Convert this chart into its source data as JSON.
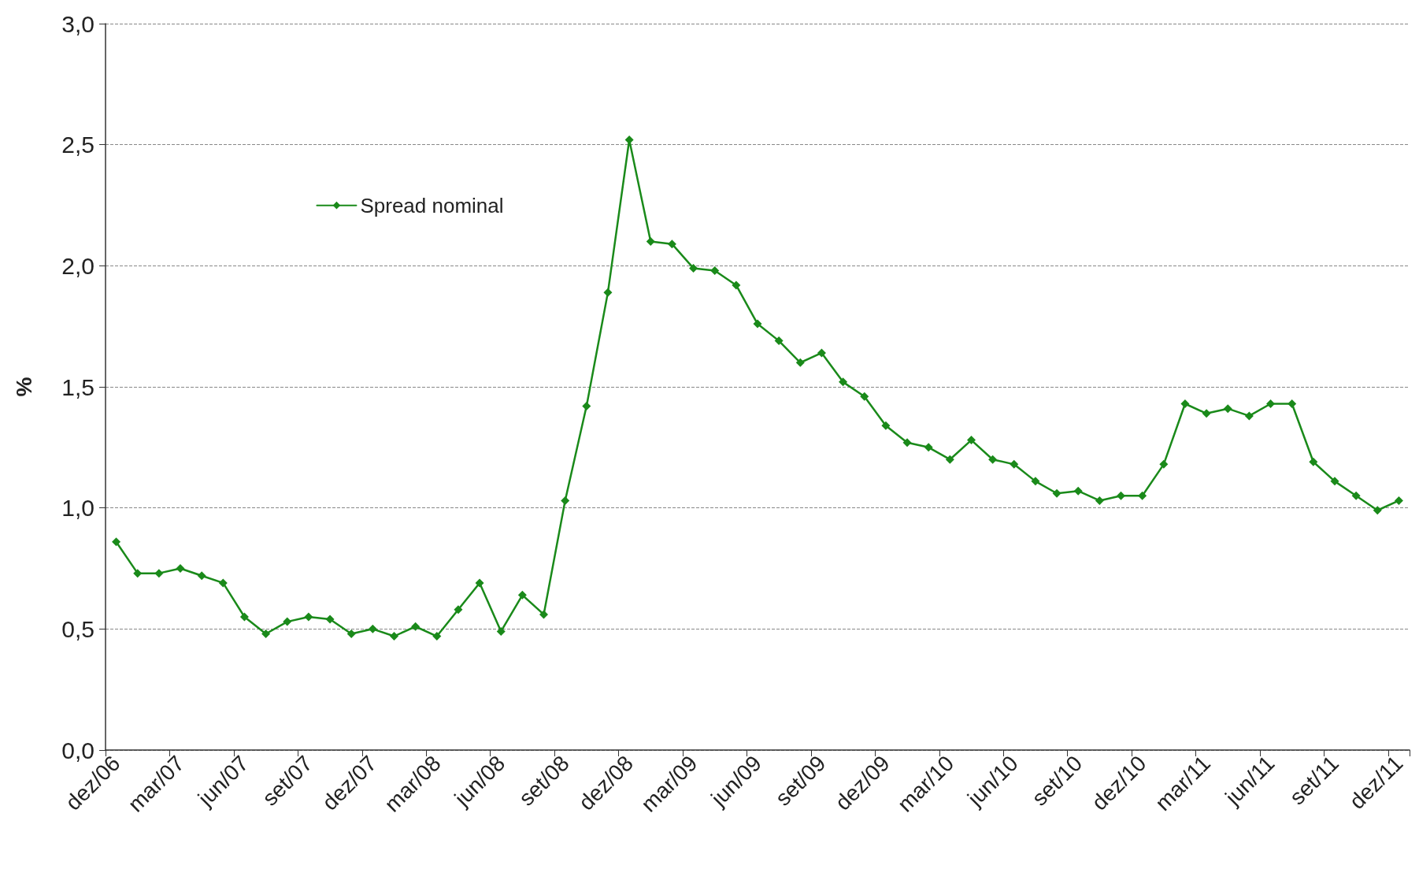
{
  "chart_data": {
    "type": "line",
    "ylabel": "%",
    "categories": [
      "dez/06",
      null,
      null,
      "mar/07",
      null,
      null,
      "jun/07",
      null,
      null,
      "set/07",
      null,
      null,
      "dez/07",
      null,
      null,
      "mar/08",
      null,
      null,
      "jun/08",
      null,
      null,
      "set/08",
      null,
      null,
      "dez/08",
      null,
      null,
      "mar/09",
      null,
      null,
      "jun/09",
      null,
      null,
      "set/09",
      null,
      null,
      "dez/09",
      null,
      null,
      "mar/10",
      null,
      null,
      "jun/10",
      null,
      null,
      "set/10",
      null,
      null,
      "dez/10",
      null,
      null,
      "mar/11",
      null,
      null,
      "jun/11",
      null,
      null,
      "set/11",
      null,
      null,
      "dez/11"
    ],
    "series": [
      {
        "name": "Spread nominal",
        "color": "#1a8a1a",
        "values": [
          0.86,
          0.73,
          0.73,
          0.75,
          0.72,
          0.69,
          0.55,
          0.48,
          0.53,
          0.55,
          0.54,
          0.48,
          0.5,
          0.47,
          0.51,
          0.47,
          0.58,
          0.69,
          0.49,
          0.64,
          0.56,
          1.03,
          1.42,
          1.89,
          2.52,
          2.1,
          2.09,
          1.99,
          1.98,
          1.92,
          1.76,
          1.69,
          1.6,
          1.64,
          1.52,
          1.46,
          1.34,
          1.27,
          1.25,
          1.2,
          1.28,
          1.2,
          1.18,
          1.11,
          1.06,
          1.07,
          1.03,
          1.05,
          1.05,
          1.18,
          1.43,
          1.39,
          1.41,
          1.38,
          1.43,
          1.43,
          1.19,
          1.11,
          1.05,
          0.99,
          1.03
        ]
      }
    ],
    "ylim": [
      0,
      3
    ],
    "yticks": [
      {
        "value": 0,
        "label": "0,0"
      },
      {
        "value": 0.5,
        "label": "0,5"
      },
      {
        "value": 1,
        "label": "1,0"
      },
      {
        "value": 1.5,
        "label": "1,5"
      },
      {
        "value": 2,
        "label": "2,0"
      },
      {
        "value": 2.5,
        "label": "2,5"
      },
      {
        "value": 3,
        "label": "3,0"
      }
    ],
    "grid": "y",
    "legend": "top left",
    "marker": "diamond",
    "line_style": "solid"
  }
}
